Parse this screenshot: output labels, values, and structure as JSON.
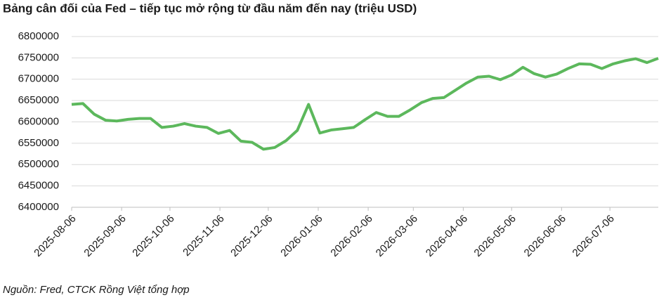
{
  "chart_data": {
    "type": "line",
    "title": "Bảng cân đối của Fed – tiếp tục mở rộng từ đầu năm đến nay (triệu USD)",
    "source": "Nguồn: Fred, CTCK Rồng Việt tổng hợp",
    "x": [
      "2025-08-06",
      "2025-08-13",
      "2025-08-20",
      "2025-08-27",
      "2025-09-03",
      "2025-09-10",
      "2025-09-17",
      "2025-09-24",
      "2025-10-01",
      "2025-10-08",
      "2025-10-15",
      "2025-10-22",
      "2025-10-29",
      "2025-11-05",
      "2025-11-12",
      "2025-11-19",
      "2025-11-26",
      "2025-12-03",
      "2025-12-10",
      "2025-12-17",
      "2025-12-24",
      "2025-12-31",
      "2026-01-07",
      "2026-01-14",
      "2026-01-21",
      "2026-01-28",
      "2026-02-04",
      "2026-02-11",
      "2026-02-18",
      "2026-02-25",
      "2026-03-04",
      "2026-03-11",
      "2026-03-18",
      "2026-03-25",
      "2026-04-01",
      "2026-04-08",
      "2026-04-15",
      "2026-04-22",
      "2026-04-29",
      "2026-05-06",
      "2026-05-13",
      "2026-05-20",
      "2026-05-27",
      "2026-06-03",
      "2026-06-10",
      "2026-06-17",
      "2026-06-24",
      "2026-07-01",
      "2026-07-08",
      "2026-07-15",
      "2026-07-22",
      "2026-07-29",
      "2026-08-05"
    ],
    "series": [
      {
        "color": "#5cb85c",
        "values": [
          6641000,
          6643000,
          6618000,
          6604000,
          6602000,
          6606000,
          6608000,
          6608000,
          6587000,
          6590000,
          6596000,
          6590000,
          6587000,
          6573000,
          6580000,
          6555000,
          6552000,
          6536000,
          6540000,
          6556000,
          6580000,
          6641000,
          6574000,
          6581000,
          6584000,
          6587000,
          6605000,
          6622000,
          6613000,
          6613000,
          6628000,
          6645000,
          6655000,
          6657000,
          6674000,
          6691000,
          6705000,
          6707000,
          6699000,
          6710000,
          6728000,
          6713000,
          6705000,
          6712000,
          6725000,
          6736000,
          6735000,
          6725000,
          6736000,
          6743000,
          6748000,
          6739000,
          6749000
        ]
      }
    ],
    "xlim": [
      "2025-08-06",
      "2026-08-05"
    ],
    "xticks": [
      "2025-08-06",
      "2025-09-06",
      "2025-10-06",
      "2025-11-06",
      "2025-12-06",
      "2026-01-06",
      "2026-02-06",
      "2026-03-06",
      "2026-04-06",
      "2026-05-06",
      "2026-06-06",
      "2026-07-06"
    ],
    "ylim": [
      6400000,
      6800000
    ],
    "yticks": [
      6400000,
      6450000,
      6500000,
      6550000,
      6600000,
      6650000,
      6700000,
      6750000,
      6800000
    ],
    "grid": true
  }
}
